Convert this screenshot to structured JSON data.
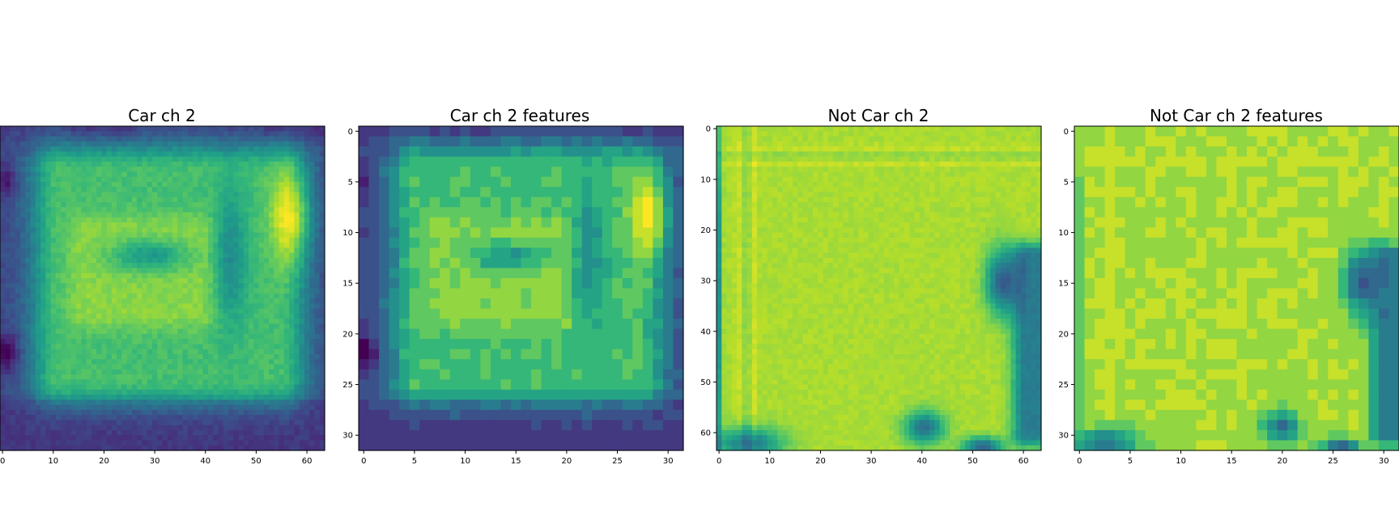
{
  "figure": {
    "background": "#ffffff"
  },
  "colormap": {
    "name": "viridis",
    "stops": [
      "#440154",
      "#482878",
      "#3e4989",
      "#31688e",
      "#26828e",
      "#1f9e89",
      "#35b779",
      "#6ece58",
      "#b5de2b",
      "#fde725"
    ]
  },
  "chart_data": [
    {
      "type": "heatmap",
      "title": "Car ch 2",
      "xlabel": "",
      "ylabel": "",
      "grid": false,
      "shape": [
        64,
        64
      ],
      "xticks": [
        "0",
        "10",
        "20",
        "30",
        "40",
        "50",
        "60"
      ],
      "yticks": [],
      "values_description": "car rear view; dark top band and bottom road, bright rectangular body with darker center blob, dark vertical gap near x~44, bright tail light near x~55-62, y~7-22, dark spots at left edge"
    },
    {
      "type": "heatmap",
      "title": "Car ch 2 features",
      "xlabel": "",
      "ylabel": "",
      "grid": false,
      "shape": [
        32,
        32
      ],
      "xticks": [
        "0",
        "5",
        "10",
        "15",
        "20",
        "25",
        "30"
      ],
      "yticks": [
        "0",
        "5",
        "10",
        "15",
        "20",
        "25",
        "30"
      ]
    },
    {
      "type": "heatmap",
      "title": "Not Car ch 2",
      "xlabel": "",
      "ylabel": "",
      "grid": false,
      "shape": [
        64,
        64
      ],
      "xticks": [
        "0",
        "10",
        "20",
        "30",
        "40",
        "50",
        "60"
      ],
      "yticks": [
        "0",
        "10",
        "20",
        "30",
        "40",
        "50",
        "60"
      ]
    },
    {
      "type": "heatmap",
      "title": "Not Car ch 2 features",
      "xlabel": "",
      "ylabel": "",
      "grid": false,
      "shape": [
        32,
        32
      ],
      "xticks": [
        "0",
        "5",
        "10",
        "15",
        "20",
        "25",
        "30"
      ],
      "yticks": [
        "0",
        "5",
        "10",
        "15",
        "20",
        "25",
        "30"
      ]
    }
  ]
}
